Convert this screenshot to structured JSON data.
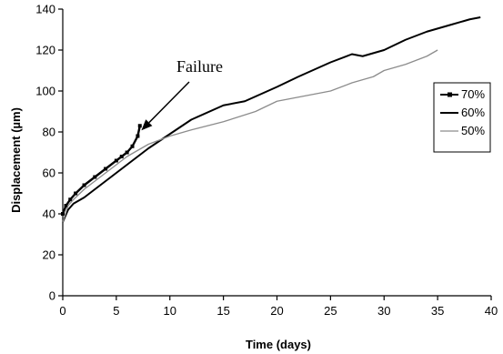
{
  "chart_data": {
    "type": "line",
    "title": "",
    "xlabel": "Time (days)",
    "ylabel": "Displacement (µm)",
    "xlim": [
      0,
      40
    ],
    "ylim": [
      0,
      140
    ],
    "xticks": [
      0,
      5,
      10,
      15,
      20,
      25,
      30,
      35,
      40
    ],
    "yticks": [
      0,
      20,
      40,
      60,
      80,
      100,
      120,
      140
    ],
    "xtick_labels": [
      "0",
      "5",
      "10",
      "15",
      "20",
      "25",
      "30",
      "35",
      "40"
    ],
    "ytick_labels": [
      "0",
      "20",
      "40",
      "60",
      "80",
      "100",
      "120",
      "140"
    ],
    "grid": false,
    "legend_position": "right",
    "annotation": {
      "text": "Failure",
      "target": {
        "x": 7.0,
        "y": 79
      }
    },
    "series": [
      {
        "name": "70%",
        "color": "#000000",
        "marker": "square",
        "x": [
          0,
          0.3,
          0.7,
          1.2,
          2,
          3,
          4,
          5,
          5.5,
          6,
          6.5,
          7,
          7.2
        ],
        "y": [
          40,
          44,
          47,
          50,
          54,
          58,
          62,
          66,
          68,
          70,
          73,
          78,
          83
        ]
      },
      {
        "name": "60%",
        "color": "#000000",
        "marker": "none",
        "x": [
          0,
          0.5,
          1,
          2,
          3,
          4,
          5,
          6,
          8,
          10,
          12,
          15,
          17,
          20,
          22,
          25,
          27,
          28,
          30,
          32,
          34,
          36,
          38,
          39
        ],
        "y": [
          36,
          42,
          45,
          48,
          52,
          56,
          60,
          64,
          72,
          79,
          86,
          93,
          95,
          102,
          107,
          114,
          118,
          117,
          120,
          125,
          129,
          132,
          135,
          136
        ]
      },
      {
        "name": "50%",
        "color": "#8c8c8c",
        "marker": "none",
        "x": [
          0,
          0.5,
          1,
          2,
          3,
          4,
          5,
          6,
          8,
          10,
          12,
          15,
          18,
          20,
          22,
          25,
          27,
          29,
          30,
          32,
          34,
          35
        ],
        "y": [
          36,
          44,
          47,
          52,
          56,
          60,
          64,
          68,
          74,
          78,
          81,
          85,
          90,
          95,
          97,
          100,
          104,
          107,
          110,
          113,
          117,
          120
        ]
      }
    ]
  }
}
